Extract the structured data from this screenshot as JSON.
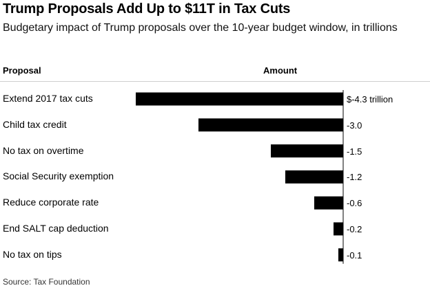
{
  "title": "Trump Proposals Add Up to $11T in Tax Cuts",
  "subtitle": "Budgetary impact of Trump proposals over the 10-year budget window, in trillions",
  "headers": {
    "proposal": "Proposal",
    "amount": "Amount"
  },
  "source": "Source: Tax Foundation",
  "colors": {
    "bar": "#000000",
    "axis": "#000000",
    "rule": "#cfcfcf"
  },
  "chart_data": {
    "type": "bar",
    "orientation": "horizontal",
    "title": "Trump Proposals Add Up to $11T in Tax Cuts",
    "subtitle": "Budgetary impact of Trump proposals over the 10-year budget window, in trillions",
    "xlabel": "Amount",
    "ylabel": "Proposal",
    "categories": [
      "Extend 2017 tax cuts",
      "Child tax credit",
      "No tax on overtime",
      "Social Security exemption",
      "Reduce corporate rate",
      "End SALT cap deduction",
      "No tax on tips"
    ],
    "values": [
      -4.3,
      -3.0,
      -1.5,
      -1.2,
      -0.6,
      -0.2,
      -0.1
    ],
    "value_labels": [
      "$-4.3 trillion",
      "-3.0",
      "-1.5",
      "-1.2",
      "-0.6",
      "-0.2",
      "-0.1"
    ],
    "xlim": [
      -4.3,
      0
    ],
    "grid": false,
    "source": "Source: Tax Foundation"
  }
}
